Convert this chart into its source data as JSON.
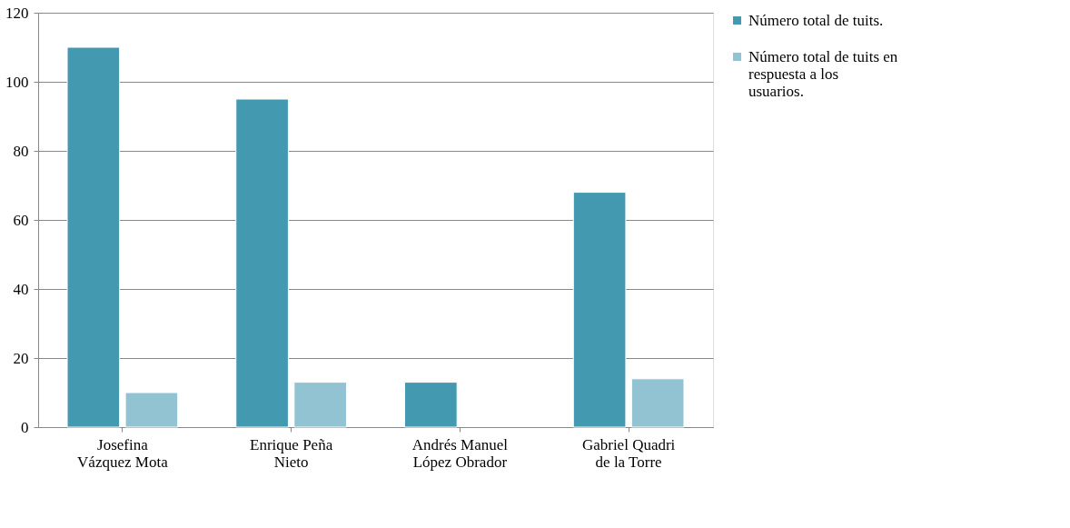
{
  "chart_data": {
    "type": "bar",
    "categories": [
      "Josefina Vázquez Mota",
      "Enrique Peña Nieto",
      "Andrés Manuel López Obrador",
      "Gabriel Quadri de la Torre"
    ],
    "series": [
      {
        "name": "Número total de tuits.",
        "color": "#4399b0",
        "values": [
          110,
          95,
          13,
          68
        ]
      },
      {
        "name": "Número total de tuits en respuesta a los usuarios.",
        "color": "#92c3d3",
        "values": [
          10,
          13,
          null,
          14
        ]
      }
    ],
    "ylim": [
      0,
      120
    ],
    "yticks": [
      0,
      20,
      40,
      60,
      80,
      100,
      120
    ],
    "grid": "y",
    "legend": "right"
  }
}
